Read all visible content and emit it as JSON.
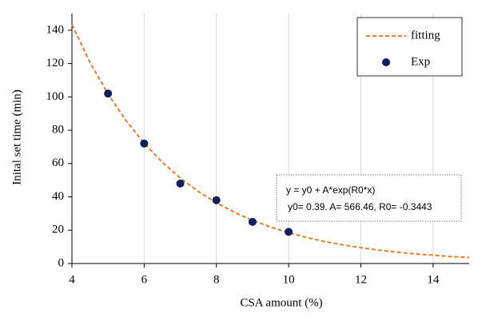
{
  "chart_data": {
    "type": "scatter",
    "x_label": "CSA amount (%)",
    "y_label": "Inital set time (min)",
    "xlim": [
      4,
      15
    ],
    "xticks": [
      4,
      6,
      8,
      10,
      12,
      14
    ],
    "ylim": [
      0,
      150
    ],
    "yticks": [
      0,
      20,
      40,
      60,
      80,
      100,
      120,
      140
    ],
    "grid": "x",
    "legend": "upper right",
    "annotations": [
      "y =   y0 + A*exp(R0*x)",
      "y0= 0.39. A= 566.46, R0= -0.3443"
    ],
    "series": [
      {
        "name": "fitting",
        "type": "line",
        "style": "dashed",
        "color": "#e87d2a",
        "x": [
          4,
          4.5,
          5,
          5.5,
          6,
          6.5,
          7,
          7.5,
          8,
          8.5,
          9,
          9.5,
          10,
          10.5,
          11,
          11.5,
          12,
          12.5,
          13,
          13.5,
          14,
          14.5,
          15
        ],
        "values": [
          143.3,
          120.7,
          101.7,
          85.7,
          72.2,
          60.8,
          51.3,
          43.2,
          36.5,
          30.7,
          25.9,
          21.9,
          18.5,
          15.6,
          13.2,
          11.2,
          9.5,
          8.0,
          6.8,
          5.8,
          5.0,
          4.2,
          3.6
        ]
      },
      {
        "name": "Exp",
        "type": "scatter",
        "color": "#0d1f5c",
        "x": [
          5,
          6,
          7,
          8,
          9,
          10
        ],
        "values": [
          102,
          72,
          48,
          38,
          25,
          19
        ]
      }
    ]
  }
}
